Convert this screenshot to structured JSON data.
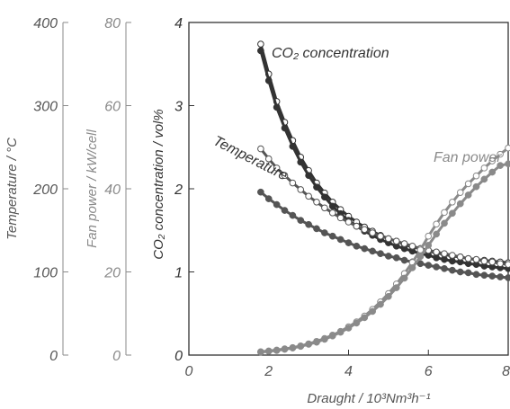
{
  "chart_data": {
    "type": "line",
    "xlabel": "Draught",
    "xlabel_unit": "10³Nm³h⁻¹",
    "xlim": [
      0,
      8
    ],
    "x_ticks": [
      0,
      2,
      4,
      6,
      8
    ],
    "grid": false,
    "axes": [
      {
        "id": "temperature",
        "label": "Temperature",
        "unit": "°C",
        "lim": [
          0,
          400
        ],
        "ticks": [
          0,
          100,
          200,
          300,
          400
        ],
        "color": "#555555"
      },
      {
        "id": "fan_power",
        "label": "Fan power",
        "unit": "kW/cell",
        "lim": [
          0,
          80
        ],
        "ticks": [
          0,
          20,
          40,
          60,
          80
        ],
        "color": "#8a8a8a"
      },
      {
        "id": "co2",
        "label": "CO₂ concentration",
        "unit": "vol%",
        "lim": [
          0,
          4
        ],
        "ticks": [
          0,
          1,
          2,
          3,
          4
        ],
        "color": "#333333"
      }
    ],
    "series": [
      {
        "name": "CO₂ concentration",
        "group": "co2",
        "axis": "co2",
        "marker": "open",
        "line_color": "#333333",
        "x": [
          1.8,
          2.0,
          2.2,
          2.4,
          2.6,
          2.8,
          3.0,
          3.2,
          3.4,
          3.6,
          3.8,
          4.0,
          4.2,
          4.4,
          4.6,
          4.8,
          5.0,
          5.2,
          5.4,
          5.6,
          5.8,
          6.0,
          6.2,
          6.4,
          6.6,
          6.8,
          7.0,
          7.2,
          7.4,
          7.6,
          7.8,
          8.0
        ],
        "y": [
          3.74,
          3.38,
          3.05,
          2.8,
          2.58,
          2.38,
          2.22,
          2.07,
          1.95,
          1.84,
          1.75,
          1.67,
          1.6,
          1.54,
          1.49,
          1.44,
          1.4,
          1.37,
          1.33,
          1.3,
          1.28,
          1.25,
          1.23,
          1.21,
          1.19,
          1.18,
          1.16,
          1.15,
          1.14,
          1.13,
          1.12,
          1.11
        ]
      },
      {
        "name": "CO₂ concentration",
        "group": "co2",
        "axis": "co2",
        "marker": "filled",
        "line_color": "#333333",
        "x": [
          1.8,
          2.0,
          2.2,
          2.4,
          2.6,
          2.8,
          3.0,
          3.2,
          3.4,
          3.6,
          3.8,
          4.0,
          4.2,
          4.4,
          4.6,
          4.8,
          5.0,
          5.2,
          5.4,
          5.6,
          5.8,
          6.0,
          6.2,
          6.4,
          6.6,
          6.8,
          7.0,
          7.2,
          7.4,
          7.6,
          7.8,
          8.0
        ],
        "y": [
          3.66,
          3.3,
          2.98,
          2.73,
          2.51,
          2.32,
          2.16,
          2.02,
          1.9,
          1.79,
          1.7,
          1.62,
          1.55,
          1.49,
          1.44,
          1.39,
          1.35,
          1.31,
          1.28,
          1.25,
          1.22,
          1.2,
          1.17,
          1.15,
          1.13,
          1.12,
          1.1,
          1.09,
          1.07,
          1.06,
          1.05,
          1.04
        ]
      },
      {
        "name": "Temperature",
        "group": "temperature",
        "axis": "temperature",
        "marker": "open",
        "line_color": "#555555",
        "x": [
          1.8,
          2.0,
          2.2,
          2.4,
          2.6,
          2.8,
          3.0,
          3.2,
          3.4,
          3.6,
          3.8,
          4.0,
          4.2,
          4.4,
          4.6,
          4.8,
          5.0,
          5.2,
          5.4,
          5.6,
          5.8,
          6.0,
          6.2,
          6.4,
          6.6,
          6.8,
          7.0,
          7.2,
          7.4,
          7.6,
          7.8,
          8.0
        ],
        "y": [
          248,
          236,
          225,
          216,
          207,
          199,
          191,
          184,
          177,
          171,
          165,
          160,
          155,
          151,
          147,
          143,
          140,
          137,
          134,
          131,
          128,
          126,
          124,
          122,
          120,
          118,
          116,
          115,
          113,
          112,
          110,
          109
        ]
      },
      {
        "name": "Temperature",
        "group": "temperature",
        "axis": "temperature",
        "marker": "filled",
        "line_color": "#555555",
        "x": [
          1.8,
          2.0,
          2.2,
          2.4,
          2.6,
          2.8,
          3.0,
          3.2,
          3.4,
          3.6,
          3.8,
          4.0,
          4.2,
          4.4,
          4.6,
          4.8,
          5.0,
          5.2,
          5.4,
          5.6,
          5.8,
          6.0,
          6.2,
          6.4,
          6.6,
          6.8,
          7.0,
          7.2,
          7.4,
          7.6,
          7.8,
          8.0
        ],
        "y": [
          196,
          188,
          181,
          174,
          168,
          162,
          157,
          152,
          147,
          143,
          139,
          135,
          131,
          128,
          125,
          122,
          119,
          117,
          114,
          112,
          110,
          108,
          106,
          104,
          102,
          100,
          99,
          97,
          96,
          95,
          94,
          93
        ]
      },
      {
        "name": "Fan power",
        "group": "fan_power",
        "axis": "fan_power",
        "marker": "open",
        "line_color": "#8a8a8a",
        "x": [
          1.8,
          2.0,
          2.2,
          2.4,
          2.6,
          2.8,
          3.0,
          3.2,
          3.4,
          3.6,
          3.8,
          4.0,
          4.2,
          4.4,
          4.6,
          4.8,
          5.0,
          5.2,
          5.4,
          5.6,
          5.8,
          6.0,
          6.2,
          6.4,
          6.6,
          6.8,
          7.0,
          7.2,
          7.4,
          7.6,
          7.8,
          8.0
        ],
        "y": [
          0.8,
          1.0,
          1.2,
          1.5,
          1.8,
          2.2,
          2.7,
          3.3,
          4.0,
          4.8,
          5.7,
          6.8,
          8.0,
          9.4,
          11.0,
          12.8,
          14.8,
          17.1,
          19.6,
          22.3,
          25.3,
          28.6,
          31.5,
          34.3,
          36.8,
          39.1,
          41.2,
          43.1,
          45.0,
          46.7,
          48.3,
          49.8
        ]
      },
      {
        "name": "Fan power",
        "group": "fan_power",
        "axis": "fan_power",
        "marker": "filled",
        "line_color": "#8a8a8a",
        "x": [
          1.8,
          2.0,
          2.2,
          2.4,
          2.6,
          2.8,
          3.0,
          3.2,
          3.4,
          3.6,
          3.8,
          4.0,
          4.2,
          4.4,
          4.6,
          4.8,
          5.0,
          5.2,
          5.4,
          5.6,
          5.8,
          6.0,
          6.2,
          6.4,
          6.6,
          6.8,
          7.0,
          7.2,
          7.4,
          7.6,
          7.8,
          8.0
        ],
        "y": [
          0.7,
          0.9,
          1.1,
          1.4,
          1.7,
          2.1,
          2.6,
          3.1,
          3.8,
          4.6,
          5.5,
          6.5,
          7.7,
          9.0,
          10.5,
          12.2,
          14.1,
          16.2,
          18.5,
          21.0,
          23.7,
          26.4,
          29.1,
          31.7,
          34.1,
          36.4,
          38.5,
          40.5,
          42.3,
          44.0,
          45.6,
          46.0
        ]
      }
    ],
    "annotations": [
      {
        "text": "CO₂ concentration",
        "series_group": "co2"
      },
      {
        "text": "Temperature",
        "series_group": "temperature"
      },
      {
        "text": "Fan power",
        "series_group": "fan_power"
      }
    ]
  }
}
